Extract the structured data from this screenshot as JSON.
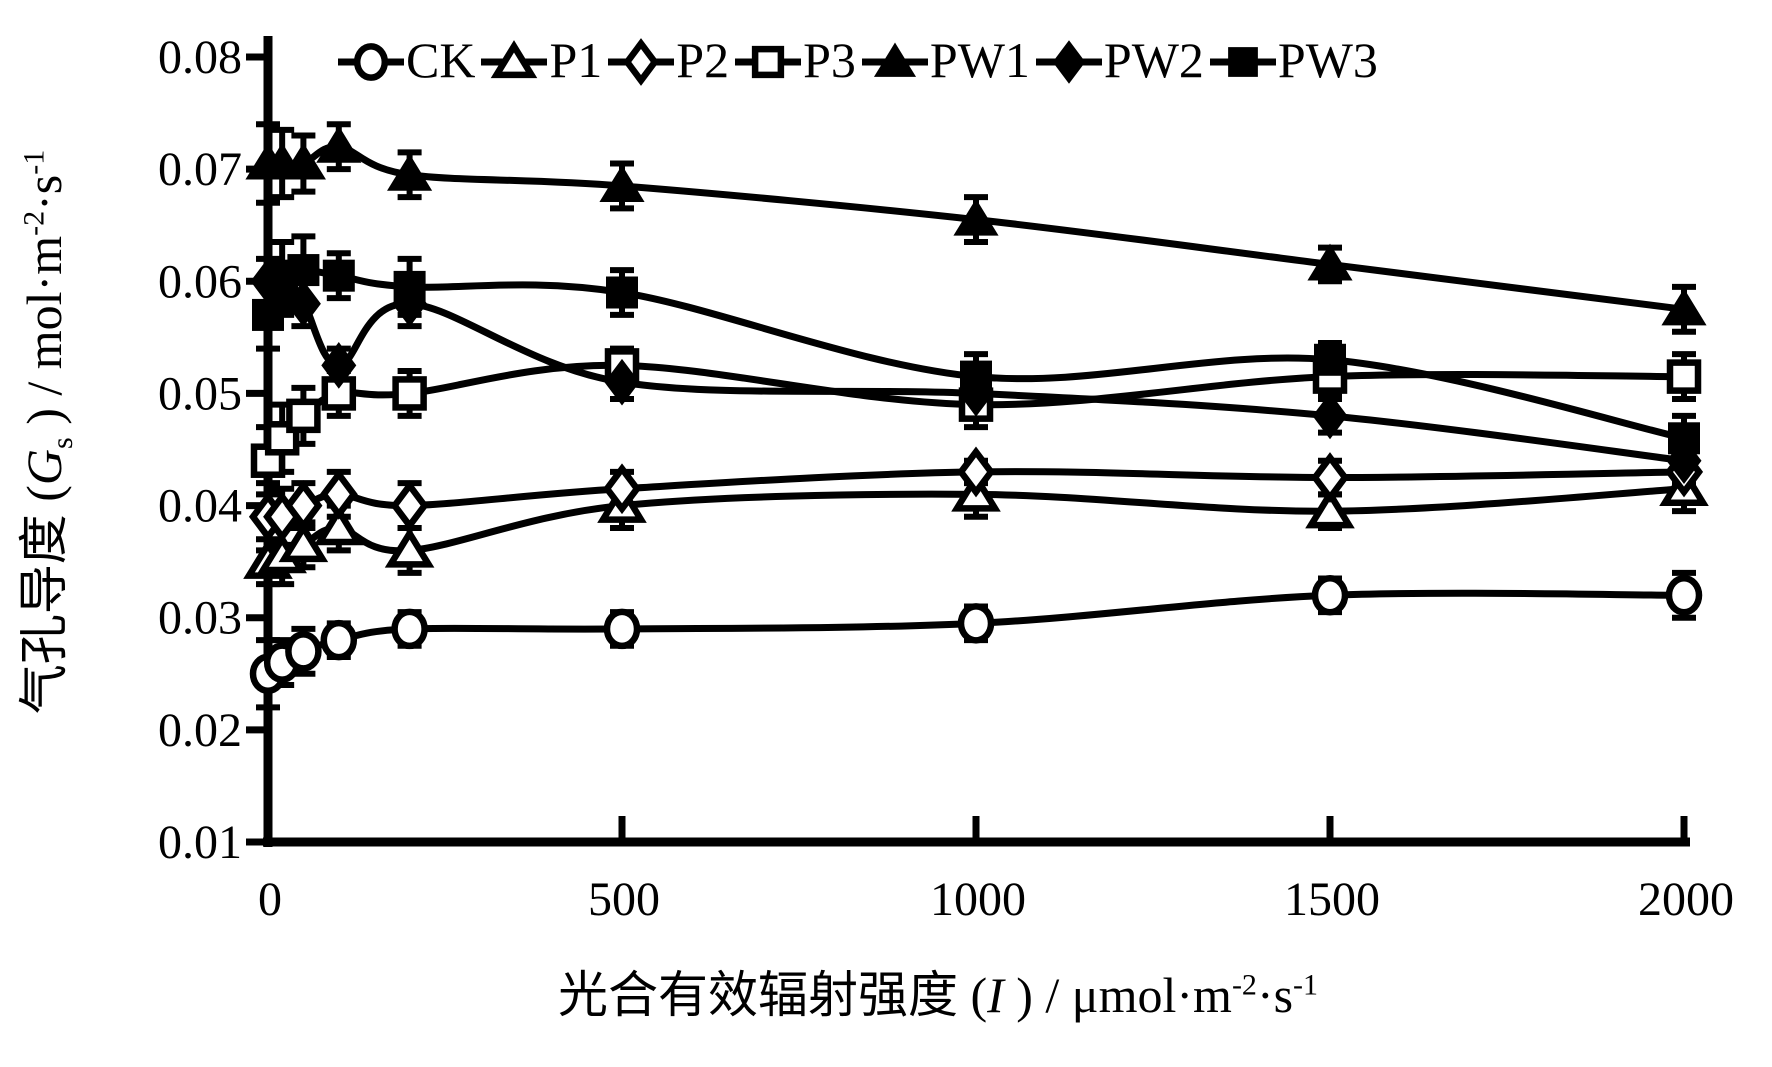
{
  "chart_data": {
    "type": "line",
    "title": "",
    "x": [
      0,
      20,
      50,
      100,
      200,
      500,
      1000,
      1500,
      2000
    ],
    "xlim": [
      0,
      2000
    ],
    "ylim": [
      0.01,
      0.08
    ],
    "grid": false,
    "legend_position": "top",
    "xlabel_runs": [
      {
        "t": "光合有效辐射强度 ("
      },
      {
        "t": "I",
        "i": true
      },
      {
        "t": " ) / μmol·m"
      },
      {
        "t": "-2",
        "sup": true
      },
      {
        "t": "·s"
      },
      {
        "t": "-1",
        "sup": true
      }
    ],
    "ylabel_runs": [
      {
        "t": "气孔导度 ("
      },
      {
        "t": "G",
        "i": true
      },
      {
        "t": "s",
        "sub": true
      },
      {
        "t": " ) / mol·m"
      },
      {
        "t": "-2",
        "sup": true
      },
      {
        "t": "·s"
      },
      {
        "t": "-1",
        "sup": true
      }
    ],
    "x_ticks": {
      "values": [
        0,
        500,
        1000,
        1500,
        2000
      ],
      "labels": [
        "0",
        "500",
        "1000",
        "1500",
        "2000"
      ]
    },
    "y_ticks": {
      "values": [
        0.01,
        0.02,
        0.03,
        0.04,
        0.05,
        0.06,
        0.07,
        0.08
      ],
      "labels": [
        "0.01",
        "0.02",
        "0.03",
        "0.04",
        "0.05",
        "0.06",
        "0.07",
        "0.08"
      ]
    },
    "colors": {
      "foreground": "#000000",
      "background": "#ffffff"
    },
    "series": [
      {
        "name": "CK",
        "marker": "circle",
        "fill": "open",
        "values": [
          0.025,
          0.026,
          0.027,
          0.028,
          0.029,
          0.029,
          0.0295,
          0.032,
          0.032
        ],
        "errors": [
          0.003,
          0.002,
          0.002,
          0.0015,
          0.0015,
          0.0015,
          0.0015,
          0.0015,
          0.002
        ]
      },
      {
        "name": "P1",
        "marker": "triangle",
        "fill": "open",
        "values": [
          0.035,
          0.0355,
          0.0365,
          0.038,
          0.036,
          0.04,
          0.041,
          0.0395,
          0.0415
        ],
        "errors": [
          0.002,
          0.0025,
          0.002,
          0.002,
          0.002,
          0.002,
          0.002,
          0.0015,
          0.002
        ]
      },
      {
        "name": "P2",
        "marker": "diamond",
        "fill": "open",
        "values": [
          0.039,
          0.039,
          0.04,
          0.041,
          0.04,
          0.0415,
          0.043,
          0.0425,
          0.043
        ],
        "errors": [
          0.003,
          0.0025,
          0.002,
          0.002,
          0.002,
          0.0015,
          0.001,
          0.0015,
          0.0015
        ]
      },
      {
        "name": "P3",
        "marker": "square",
        "fill": "open",
        "values": [
          0.044,
          0.046,
          0.048,
          0.05,
          0.05,
          0.0525,
          0.049,
          0.0515,
          0.0515
        ],
        "errors": [
          0.003,
          0.003,
          0.0025,
          0.002,
          0.002,
          0.0015,
          0.002,
          0.0015,
          0.002
        ]
      },
      {
        "name": "PW1",
        "marker": "triangle",
        "fill": "solid",
        "values": [
          0.0705,
          0.0705,
          0.0705,
          0.072,
          0.0695,
          0.0685,
          0.0655,
          0.0615,
          0.0575
        ],
        "errors": [
          0.0035,
          0.003,
          0.0025,
          0.002,
          0.002,
          0.002,
          0.002,
          0.0015,
          0.002
        ]
      },
      {
        "name": "PW2",
        "marker": "diamond",
        "fill": "solid",
        "values": [
          0.06,
          0.059,
          0.058,
          0.0525,
          0.058,
          0.051,
          0.05,
          0.048,
          0.044
        ],
        "errors": [
          0.002,
          0.002,
          0.002,
          0.0015,
          0.002,
          0.0015,
          0.0015,
          0.0015,
          0.002
        ]
      },
      {
        "name": "PW3",
        "marker": "square",
        "fill": "solid",
        "values": [
          0.057,
          0.0605,
          0.061,
          0.0605,
          0.0595,
          0.059,
          0.0515,
          0.053,
          0.046
        ],
        "errors": [
          0.003,
          0.003,
          0.003,
          0.002,
          0.0025,
          0.002,
          0.002,
          0.0015,
          0.002
        ]
      }
    ]
  }
}
